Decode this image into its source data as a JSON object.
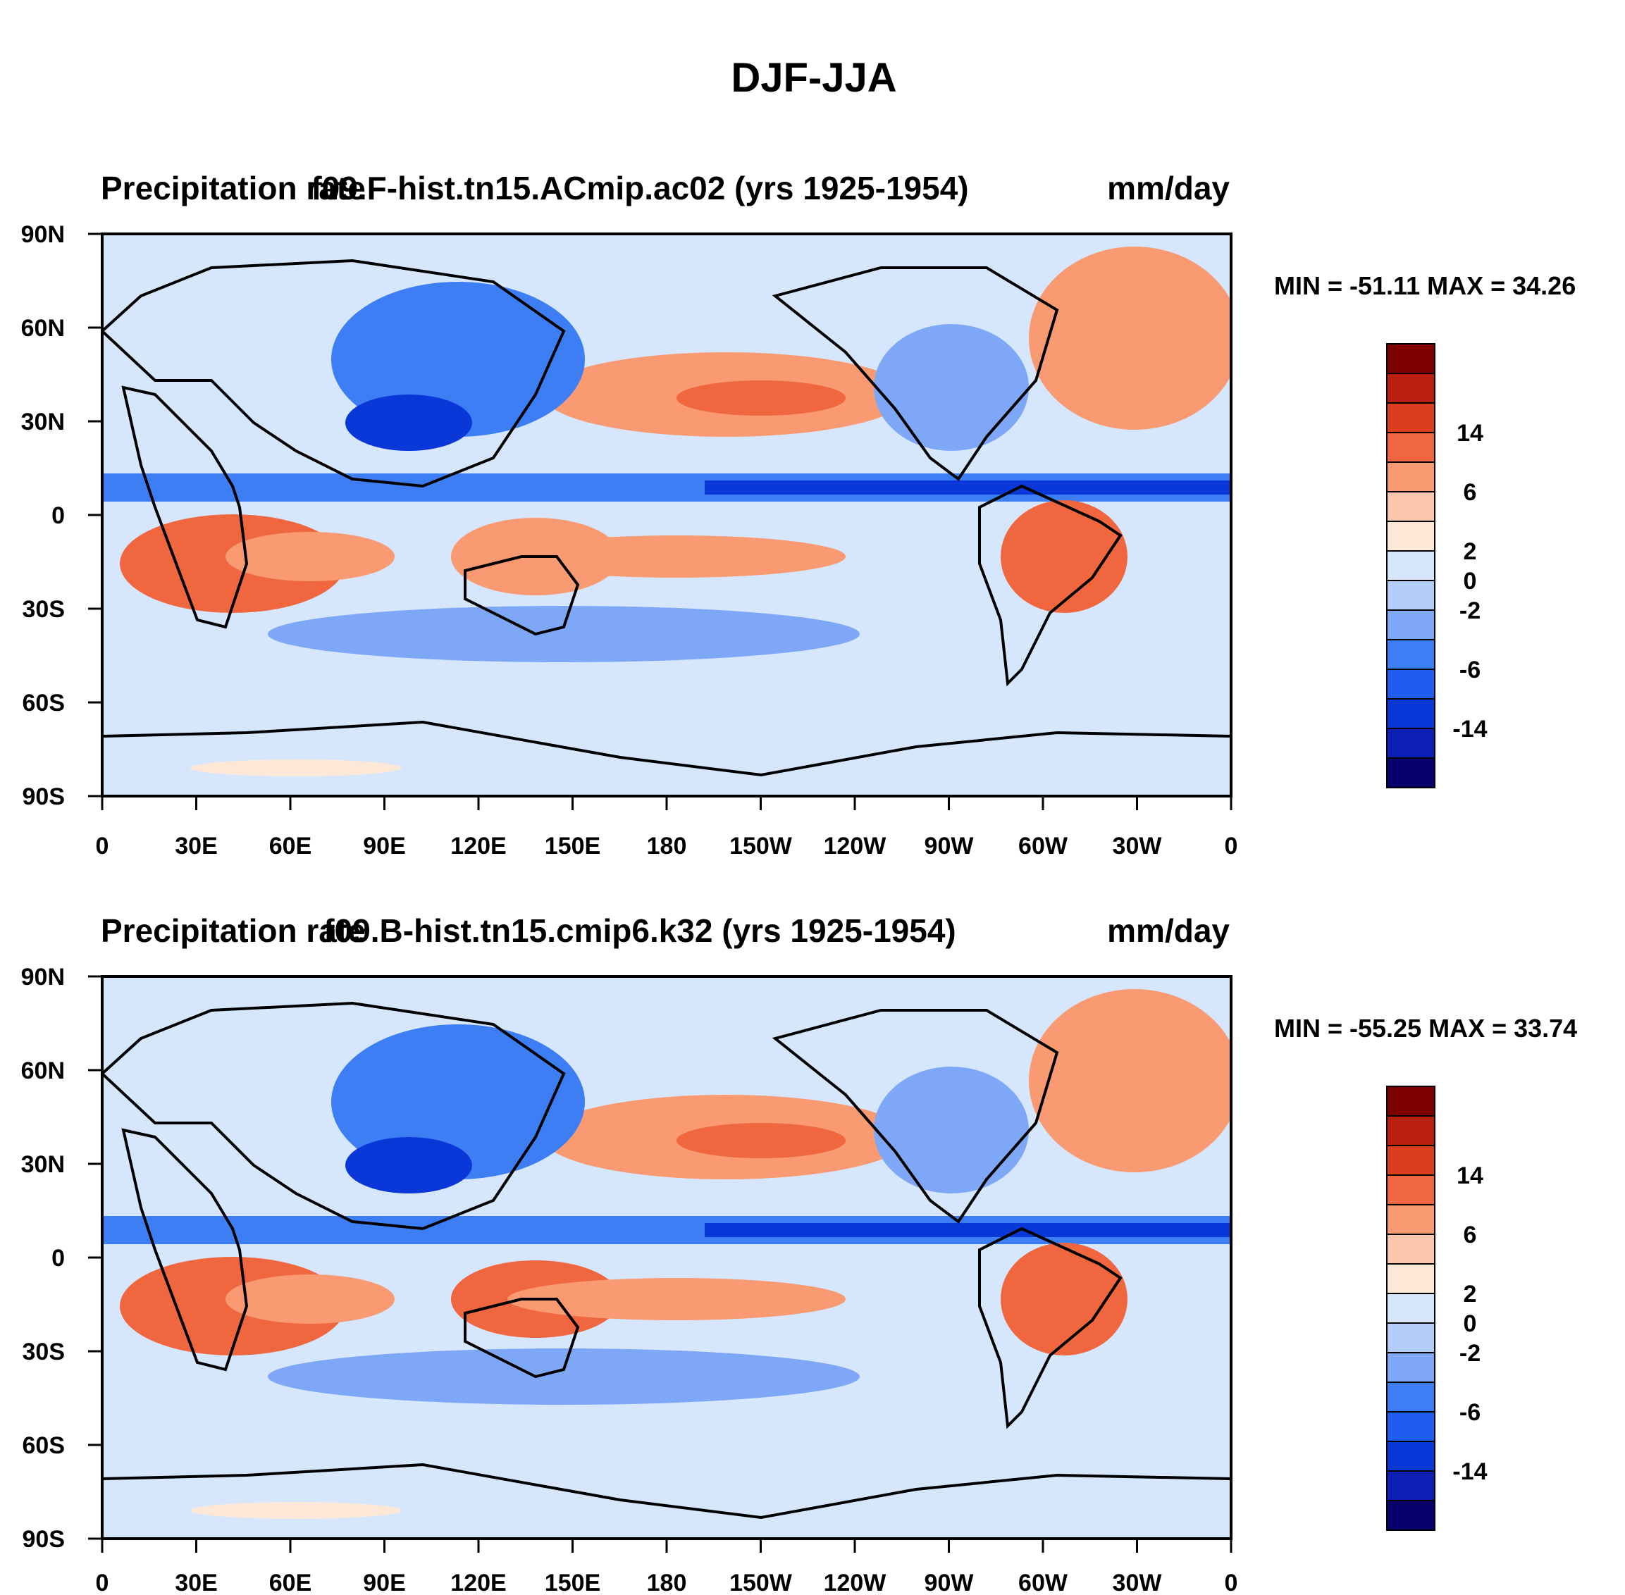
{
  "figure": {
    "title": "DJF-JJA"
  },
  "colors": {
    "levels": [
      "#08006b",
      "#0b1fb5",
      "#0a38d8",
      "#1f5cf0",
      "#3d7ef5",
      "#7ea7f7",
      "#b3cdfb",
      "#d6e7fd",
      "#fde8d8",
      "#fcc8ad",
      "#f99a72",
      "#f0663e",
      "#dc3d1c",
      "#b91f0e",
      "#7d0000"
    ],
    "land_outline": "#000000"
  },
  "colorbar": {
    "labels": [
      {
        "text": "14",
        "boundary": 12
      },
      {
        "text": "6",
        "boundary": 10
      },
      {
        "text": "2",
        "boundary": 8
      },
      {
        "text": "0",
        "boundary": 7
      },
      {
        "text": "-2",
        "boundary": 6
      },
      {
        "text": "-6",
        "boundary": 4
      },
      {
        "text": "-14",
        "boundary": 2
      }
    ]
  },
  "axes": {
    "x_ticks": [
      "0",
      "30E",
      "60E",
      "90E",
      "120E",
      "150E",
      "180",
      "150W",
      "120W",
      "90W",
      "60W",
      "30W",
      "0"
    ],
    "y_ticks": [
      "90N",
      "60N",
      "30N",
      "0",
      "30S",
      "60S",
      "90S"
    ]
  },
  "panels": [
    {
      "left_title": "Precipitation rate",
      "center_title": "f09.F-hist.tn15.ACmip.ac02 (yrs 1925-1954)",
      "units": "mm/day",
      "stats": "MIN = -51.11 MAX =  34.26",
      "min": -51.11,
      "max": 34.26
    },
    {
      "left_title": "Precipitation rate",
      "center_title": "f09.B-hist.tn15.cmip6.k32 (yrs 1925-1954)",
      "units": "mm/day",
      "stats": "MIN = -55.25 MAX =  33.74",
      "min": -55.25,
      "max": 33.74
    }
  ]
}
